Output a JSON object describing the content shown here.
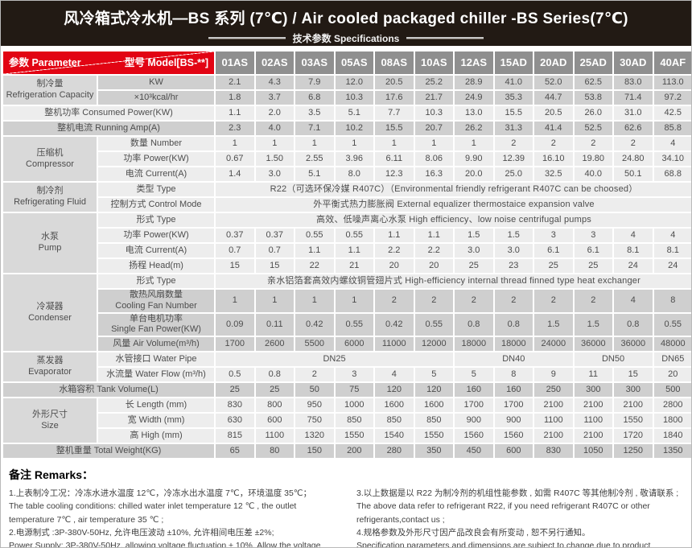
{
  "colors": {
    "accent_red": "#e20413",
    "banner_bg": "#221a14",
    "model_header_gray": "#8f8f8f"
  },
  "banner": {
    "title": "风冷箱式冷水机—BS 系列 (7℃) / Air cooled packaged chiller -BS Series(7℃)",
    "subtitle": "技术参数 Specifications"
  },
  "table": {
    "corner": {
      "param": "参数 Parameter",
      "model": "型号 Model[BS-**]"
    },
    "models": [
      "01AS",
      "02AS",
      "03AS",
      "05AS",
      "08AS",
      "10AS",
      "12AS",
      "15AD",
      "20AD",
      "25AD",
      "30AD",
      "40AF"
    ],
    "sections": [
      {
        "zh": "制冷量",
        "en": "Refrigeration Capacity",
        "rows": [
          {
            "label": "KW",
            "shade": "g",
            "values": [
              "2.1",
              "4.3",
              "7.9",
              "12.0",
              "20.5",
              "25.2",
              "28.9",
              "41.0",
              "52.0",
              "62.5",
              "83.0",
              "113.0"
            ]
          },
          {
            "label": "×10³kcal/hr",
            "shade": "g",
            "values": [
              "1.8",
              "3.7",
              "6.8",
              "10.3",
              "17.6",
              "21.7",
              "24.9",
              "35.3",
              "44.7",
              "53.8",
              "71.4",
              "97.2"
            ]
          }
        ]
      },
      {
        "zh": null,
        "en": null,
        "rows": [
          {
            "label": "整机功率 Consumed Power(KW)",
            "shade": "l",
            "values": [
              "1.1",
              "2.0",
              "3.5",
              "5.1",
              "7.7",
              "10.3",
              "13.0",
              "15.5",
              "20.5",
              "26.0",
              "31.0",
              "42.5"
            ]
          }
        ]
      },
      {
        "zh": null,
        "en": null,
        "rows": [
          {
            "label": "整机电流 Running Amp(A)",
            "shade": "g",
            "values": [
              "2.3",
              "4.0",
              "7.1",
              "10.2",
              "15.5",
              "20.7",
              "26.2",
              "31.3",
              "41.4",
              "52.5",
              "62.6",
              "85.8"
            ]
          }
        ]
      },
      {
        "zh": "压缩机",
        "en": "Compressor",
        "rows": [
          {
            "label": "数量 Number",
            "shade": "l",
            "values": [
              "1",
              "1",
              "1",
              "1",
              "1",
              "1",
              "1",
              "2",
              "2",
              "2",
              "2",
              "4"
            ]
          },
          {
            "label": "功率 Power(KW)",
            "shade": "l",
            "values": [
              "0.67",
              "1.50",
              "2.55",
              "3.96",
              "6.11",
              "8.06",
              "9.90",
              "12.39",
              "16.10",
              "19.80",
              "24.80",
              "34.10"
            ]
          },
          {
            "label": "电流 Current(A)",
            "shade": "l",
            "values": [
              "1.4",
              "3.0",
              "5.1",
              "8.0",
              "12.3",
              "16.3",
              "20.0",
              "25.0",
              "32.5",
              "40.0",
              "50.1",
              "68.8"
            ]
          }
        ]
      },
      {
        "zh": "制冷剂",
        "en": "Refrigerating Fluid",
        "rows": [
          {
            "label": "类型 Type",
            "shade": "l",
            "text": "R22（可选环保冷媒 R407C）（Environmental friendly refrigerant R407C can be choosed）"
          },
          {
            "label": "控制方式 Control Mode",
            "shade": "l",
            "text": "外平衡式热力膨胀阀 External equalizer thermostaice expansion valve"
          }
        ]
      },
      {
        "zh": "水泵",
        "en": "Pump",
        "rows": [
          {
            "label": "形式 Type",
            "shade": "l",
            "text": "高效、低噪声离心水泵 High efficiency、low noise centrifugal pumps"
          },
          {
            "label": "功率 Power(KW)",
            "shade": "l",
            "values": [
              "0.37",
              "0.37",
              "0.55",
              "0.55",
              "1.1",
              "1.1",
              "1.5",
              "1.5",
              "3",
              "3",
              "4",
              "4"
            ]
          },
          {
            "label": "电流 Current(A)",
            "shade": "l",
            "values": [
              "0.7",
              "0.7",
              "1.1",
              "1.1",
              "2.2",
              "2.2",
              "3.0",
              "3.0",
              "6.1",
              "6.1",
              "8.1",
              "8.1"
            ]
          },
          {
            "label": "扬程 Head(m)",
            "shade": "l",
            "values": [
              "15",
              "15",
              "22",
              "21",
              "20",
              "20",
              "25",
              "23",
              "25",
              "25",
              "24",
              "24"
            ]
          }
        ]
      },
      {
        "zh": "冷凝器",
        "en": "Condenser",
        "rows": [
          {
            "label": "形式 Type",
            "shade": "l",
            "text": "亲水铝箔套高效内螺纹铜管翅片式 High-efficiency internal thread finned type heat exchanger"
          },
          {
            "label": "散热风扇数量",
            "label2": "Cooling Fan Number",
            "shade": "g",
            "values": [
              "1",
              "1",
              "1",
              "1",
              "2",
              "2",
              "2",
              "2",
              "2",
              "2",
              "4",
              "8"
            ]
          },
          {
            "label": "单台电机功率",
            "label2": "Single Fan Power(KW)",
            "shade": "g",
            "values": [
              "0.09",
              "0.11",
              "0.42",
              "0.55",
              "0.42",
              "0.55",
              "0.8",
              "0.8",
              "1.5",
              "1.5",
              "0.8",
              "0.55"
            ]
          },
          {
            "label": "风量 Air Volume(m³/h)",
            "shade": "g",
            "values": [
              "1700",
              "2600",
              "5500",
              "6000",
              "11000",
              "12000",
              "18000",
              "18000",
              "24000",
              "36000",
              "36000",
              "48000"
            ]
          }
        ]
      },
      {
        "zh": "蒸发器",
        "en": "Evaporator",
        "rows": [
          {
            "label": "水管接口 Water Pipe",
            "shade": "l",
            "spans": [
              {
                "t": "DN25",
                "c": 6
              },
              {
                "t": "DN40",
                "c": 3
              },
              {
                "t": "DN50",
                "c": 2
              },
              {
                "t": "DN65",
                "c": 1
              }
            ]
          },
          {
            "label": "水流量 Water Flow (m³/h)",
            "shade": "l",
            "values": [
              "0.5",
              "0.8",
              "2",
              "3",
              "4",
              "5",
              "5",
              "8",
              "9",
              "11",
              "15",
              "20"
            ]
          }
        ]
      },
      {
        "zh": null,
        "en": null,
        "rows": [
          {
            "label": "水箱容积 Tank Volume(L)",
            "shade": "g",
            "values": [
              "25",
              "25",
              "50",
              "75",
              "120",
              "120",
              "160",
              "160",
              "250",
              "300",
              "300",
              "500"
            ]
          }
        ]
      },
      {
        "zh": "外形尺寸",
        "en": "Size",
        "rows": [
          {
            "label": "长 Length (mm)",
            "shade": "l",
            "values": [
              "830",
              "800",
              "950",
              "1000",
              "1600",
              "1600",
              "1700",
              "1700",
              "2100",
              "2100",
              "2100",
              "2800"
            ]
          },
          {
            "label": "宽 Width (mm)",
            "shade": "l",
            "values": [
              "630",
              "600",
              "750",
              "850",
              "850",
              "850",
              "900",
              "900",
              "1100",
              "1100",
              "1550",
              "1800"
            ]
          },
          {
            "label": "高 High (mm)",
            "shade": "l",
            "values": [
              "815",
              "1100",
              "1320",
              "1550",
              "1540",
              "1550",
              "1560",
              "1560",
              "2100",
              "2100",
              "1720",
              "1840"
            ]
          }
        ]
      },
      {
        "zh": null,
        "en": null,
        "rows": [
          {
            "label": "整机重量 Total Weight(KG)",
            "shade": "g",
            "values": [
              "65",
              "80",
              "150",
              "200",
              "280",
              "350",
              "450",
              "600",
              "830",
              "1050",
              "1250",
              "1350"
            ]
          }
        ]
      }
    ]
  },
  "remarks": {
    "heading": "备注 Remarks：",
    "left": [
      "1.上表制冷工况：冷冻水进水温度 12℃，冷冻水出水温度 7℃，环境温度 35℃；",
      "The table cooling conditions: chilled water inlet temperature 12 ℃ , the outlet temperature 7℃ , air temperature 35 ℃ ;",
      "2.电源制式 :3P-380V-50Hz, 允许电压波动 ±10%, 允许相间电压差 ±2%;",
      "Power Supply: 3P-380V-50Hz, allowing voltage fluctuation ± 10%, Allow the voltage difference ± 2%;"
    ],
    "right": [
      "3.以上数据是以 R22 为制冷剂的机组性能参数 , 如需 R407C 等其他制冷剂 , 敬请联系 ;",
      "The above data refer to refrigerant R22, if you need refrigerant R407C or other refrigerants,contact us ;",
      "4.规格参数及外形尺寸因产品改良会有所变动 , 恕不另行通知。",
      "Specification parameters and dimensions are subject to change due to product improvement without notice."
    ]
  }
}
